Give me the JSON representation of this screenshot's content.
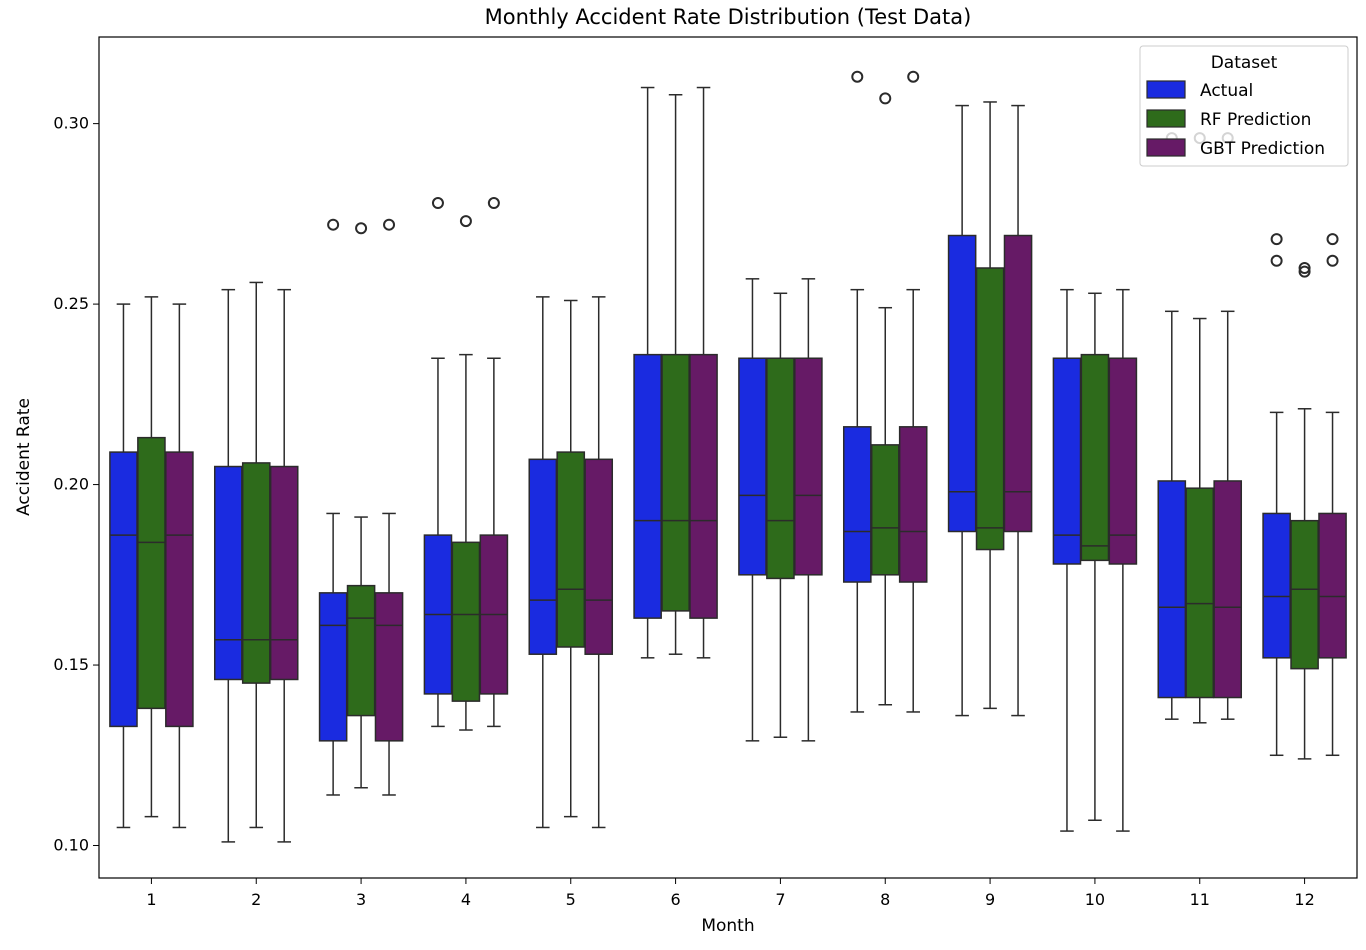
{
  "chart_data": {
    "type": "box",
    "title": "Monthly Accident Rate Distribution (Test Data)",
    "xlabel": "Month",
    "ylabel": "Accident Rate",
    "categories": [
      "1",
      "2",
      "3",
      "4",
      "5",
      "6",
      "7",
      "8",
      "9",
      "10",
      "11",
      "12"
    ],
    "ylim": [
      0.091,
      0.324
    ],
    "yticks": [
      0.1,
      0.15,
      0.2,
      0.25,
      0.3
    ],
    "ytick_labels": [
      "0.10",
      "0.15",
      "0.20",
      "0.25",
      "0.30"
    ],
    "legend": {
      "title": "Dataset",
      "position": "top-right"
    },
    "series": [
      {
        "name": "Actual",
        "color": "#1a2be0",
        "boxes": [
          {
            "whislo": 0.105,
            "q1": 0.133,
            "med": 0.186,
            "q3": 0.209,
            "whishi": 0.25,
            "fliers": []
          },
          {
            "whislo": 0.101,
            "q1": 0.146,
            "med": 0.157,
            "q3": 0.205,
            "whishi": 0.254,
            "fliers": []
          },
          {
            "whislo": 0.114,
            "q1": 0.129,
            "med": 0.161,
            "q3": 0.17,
            "whishi": 0.192,
            "fliers": [
              0.272
            ]
          },
          {
            "whislo": 0.133,
            "q1": 0.142,
            "med": 0.164,
            "q3": 0.186,
            "whishi": 0.235,
            "fliers": [
              0.278
            ]
          },
          {
            "whislo": 0.105,
            "q1": 0.153,
            "med": 0.168,
            "q3": 0.207,
            "whishi": 0.252,
            "fliers": []
          },
          {
            "whislo": 0.152,
            "q1": 0.163,
            "med": 0.19,
            "q3": 0.236,
            "whishi": 0.31,
            "fliers": []
          },
          {
            "whislo": 0.129,
            "q1": 0.175,
            "med": 0.197,
            "q3": 0.235,
            "whishi": 0.257,
            "fliers": []
          },
          {
            "whislo": 0.137,
            "q1": 0.173,
            "med": 0.187,
            "q3": 0.216,
            "whishi": 0.254,
            "fliers": [
              0.313
            ]
          },
          {
            "whislo": 0.136,
            "q1": 0.187,
            "med": 0.198,
            "q3": 0.269,
            "whishi": 0.305,
            "fliers": []
          },
          {
            "whislo": 0.104,
            "q1": 0.178,
            "med": 0.186,
            "q3": 0.235,
            "whishi": 0.254,
            "fliers": []
          },
          {
            "whislo": 0.135,
            "q1": 0.141,
            "med": 0.166,
            "q3": 0.201,
            "whishi": 0.248,
            "fliers": [
              0.296
            ]
          },
          {
            "whislo": 0.125,
            "q1": 0.152,
            "med": 0.169,
            "q3": 0.192,
            "whishi": 0.22,
            "fliers": [
              0.262,
              0.268
            ]
          }
        ]
      },
      {
        "name": "RF Prediction",
        "color": "#2e6b1b",
        "boxes": [
          {
            "whislo": 0.108,
            "q1": 0.138,
            "med": 0.184,
            "q3": 0.213,
            "whishi": 0.252,
            "fliers": []
          },
          {
            "whislo": 0.105,
            "q1": 0.145,
            "med": 0.157,
            "q3": 0.206,
            "whishi": 0.256,
            "fliers": []
          },
          {
            "whislo": 0.116,
            "q1": 0.136,
            "med": 0.163,
            "q3": 0.172,
            "whishi": 0.191,
            "fliers": [
              0.271
            ]
          },
          {
            "whislo": 0.132,
            "q1": 0.14,
            "med": 0.164,
            "q3": 0.184,
            "whishi": 0.236,
            "fliers": [
              0.273
            ]
          },
          {
            "whislo": 0.108,
            "q1": 0.155,
            "med": 0.171,
            "q3": 0.209,
            "whishi": 0.251,
            "fliers": []
          },
          {
            "whislo": 0.153,
            "q1": 0.165,
            "med": 0.19,
            "q3": 0.236,
            "whishi": 0.308,
            "fliers": []
          },
          {
            "whislo": 0.13,
            "q1": 0.174,
            "med": 0.19,
            "q3": 0.235,
            "whishi": 0.253,
            "fliers": []
          },
          {
            "whislo": 0.139,
            "q1": 0.175,
            "med": 0.188,
            "q3": 0.211,
            "whishi": 0.249,
            "fliers": [
              0.307
            ]
          },
          {
            "whislo": 0.138,
            "q1": 0.182,
            "med": 0.188,
            "q3": 0.26,
            "whishi": 0.306,
            "fliers": []
          },
          {
            "whislo": 0.107,
            "q1": 0.179,
            "med": 0.183,
            "q3": 0.236,
            "whishi": 0.253,
            "fliers": []
          },
          {
            "whislo": 0.134,
            "q1": 0.141,
            "med": 0.167,
            "q3": 0.199,
            "whishi": 0.246,
            "fliers": [
              0.296
            ]
          },
          {
            "whislo": 0.124,
            "q1": 0.149,
            "med": 0.171,
            "q3": 0.19,
            "whishi": 0.221,
            "fliers": [
              0.259,
              0.26
            ]
          }
        ]
      },
      {
        "name": "GBT Prediction",
        "color": "#661a66",
        "boxes": [
          {
            "whislo": 0.105,
            "q1": 0.133,
            "med": 0.186,
            "q3": 0.209,
            "whishi": 0.25,
            "fliers": []
          },
          {
            "whislo": 0.101,
            "q1": 0.146,
            "med": 0.157,
            "q3": 0.205,
            "whishi": 0.254,
            "fliers": []
          },
          {
            "whislo": 0.114,
            "q1": 0.129,
            "med": 0.161,
            "q3": 0.17,
            "whishi": 0.192,
            "fliers": [
              0.272
            ]
          },
          {
            "whislo": 0.133,
            "q1": 0.142,
            "med": 0.164,
            "q3": 0.186,
            "whishi": 0.235,
            "fliers": [
              0.278
            ]
          },
          {
            "whislo": 0.105,
            "q1": 0.153,
            "med": 0.168,
            "q3": 0.207,
            "whishi": 0.252,
            "fliers": []
          },
          {
            "whislo": 0.152,
            "q1": 0.163,
            "med": 0.19,
            "q3": 0.236,
            "whishi": 0.31,
            "fliers": []
          },
          {
            "whislo": 0.129,
            "q1": 0.175,
            "med": 0.197,
            "q3": 0.235,
            "whishi": 0.257,
            "fliers": []
          },
          {
            "whislo": 0.137,
            "q1": 0.173,
            "med": 0.187,
            "q3": 0.216,
            "whishi": 0.254,
            "fliers": [
              0.313
            ]
          },
          {
            "whislo": 0.136,
            "q1": 0.187,
            "med": 0.198,
            "q3": 0.269,
            "whishi": 0.305,
            "fliers": []
          },
          {
            "whislo": 0.104,
            "q1": 0.178,
            "med": 0.186,
            "q3": 0.235,
            "whishi": 0.254,
            "fliers": []
          },
          {
            "whislo": 0.135,
            "q1": 0.141,
            "med": 0.166,
            "q3": 0.201,
            "whishi": 0.248,
            "fliers": [
              0.296
            ]
          },
          {
            "whislo": 0.125,
            "q1": 0.152,
            "med": 0.169,
            "q3": 0.192,
            "whishi": 0.22,
            "fliers": [
              0.262,
              0.268
            ]
          }
        ]
      }
    ]
  }
}
